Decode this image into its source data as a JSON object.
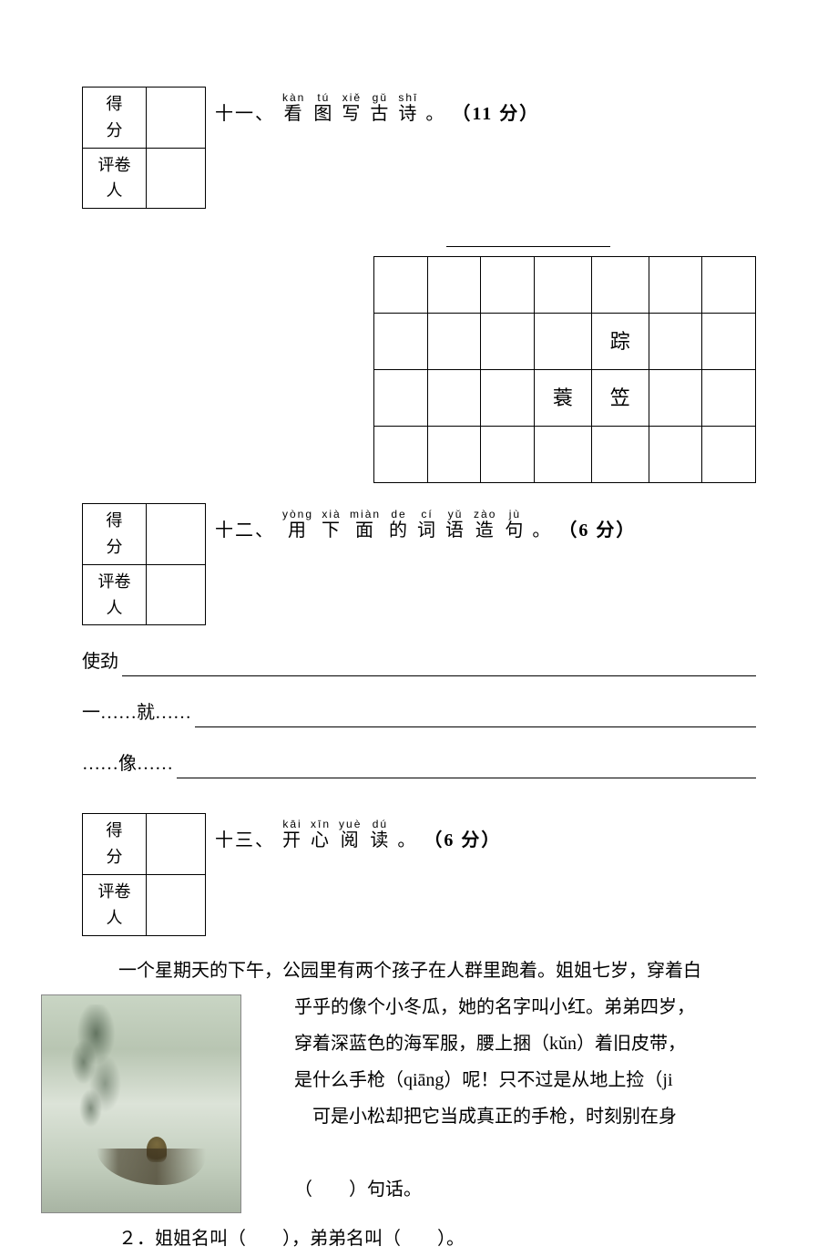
{
  "scorebox": {
    "row1": "得　分",
    "row2": "评卷人"
  },
  "section11": {
    "number": "十一、",
    "pinyin": [
      "kàn",
      "tú",
      "xiě",
      "gǔ",
      "shī"
    ],
    "hanzi": [
      "看",
      "图",
      "写",
      "古",
      "诗"
    ],
    "end": "。",
    "points": "（11 分）",
    "grid": [
      [
        "",
        "",
        "",
        "",
        "",
        "",
        ""
      ],
      [
        "",
        "",
        "",
        "",
        "踪",
        "",
        ""
      ],
      [
        "",
        "",
        "",
        "蓑",
        "笠",
        "",
        ""
      ],
      [
        "",
        "",
        "",
        "",
        "",
        "",
        ""
      ]
    ]
  },
  "section12": {
    "number": "十二、",
    "pinyin": [
      "yòng",
      "xià",
      "miàn",
      "de",
      "cí",
      "yǔ",
      "zào",
      "jù"
    ],
    "hanzi": [
      "用",
      "下",
      "面",
      "的",
      "词",
      "语",
      "造",
      "句"
    ],
    "end": "。",
    "points": "（6 分）",
    "lines": [
      "使劲",
      "一……就……",
      "……像……"
    ]
  },
  "section13": {
    "number": "十三、",
    "pinyin": [
      "kāi",
      "xīn",
      "yuè",
      "dú"
    ],
    "hanzi": [
      "开",
      "心",
      "阅",
      "读"
    ],
    "end": "。",
    "points": "（6 分）",
    "para1": "一个星期天的下午，公园里有两个孩子在人群里跑着。姐姐七岁，穿着白",
    "para_right": [
      "乎乎的像个小冬瓜，她的名字叫小红。弟弟四岁，",
      "穿着深蓝色的海军服，腰上捆（kǔn）着旧皮带，",
      "是什么手枪（qiāng）呢！只不过是从地上捡（ji",
      "　可是小松却把它当成真正的手枪，时刻别在身"
    ],
    "q1": "（　　）句话。",
    "q2": "２．姐姐名叫（　　），弟弟名叫（　　）。"
  }
}
